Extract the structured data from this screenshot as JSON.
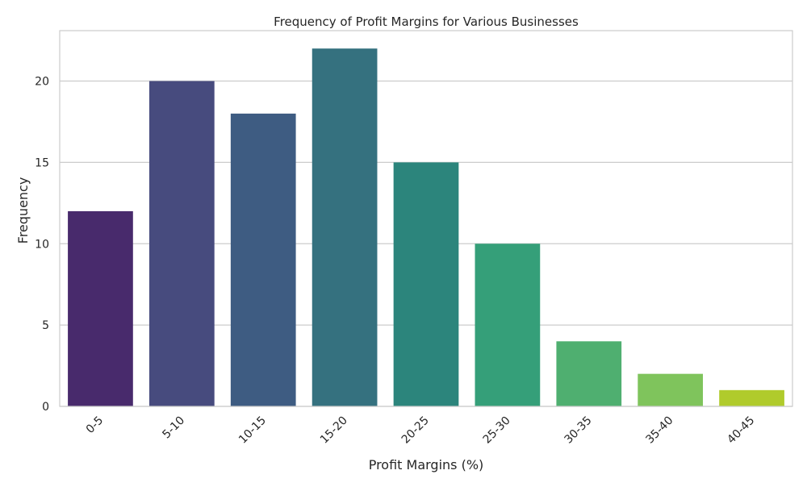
{
  "chart_data": {
    "type": "bar",
    "title": "Frequency of Profit Margins for Various Businesses",
    "xlabel": "Profit Margins (%)",
    "ylabel": "Frequency",
    "categories": [
      "0-5",
      "5-10",
      "10-15",
      "15-20",
      "20-25",
      "25-30",
      "30-35",
      "35-40",
      "40-45"
    ],
    "values": [
      12,
      20,
      18,
      22,
      15,
      10,
      4,
      2,
      1
    ],
    "ylim": [
      0,
      23.1
    ],
    "yticks": [
      0,
      5,
      10,
      15,
      20
    ],
    "grid": "horizontal",
    "colors": [
      "#482a6c",
      "#474b7e",
      "#3e5c82",
      "#35717f",
      "#2c857c",
      "#359f79",
      "#4faf70",
      "#7fc45c",
      "#b0cb2c"
    ]
  }
}
